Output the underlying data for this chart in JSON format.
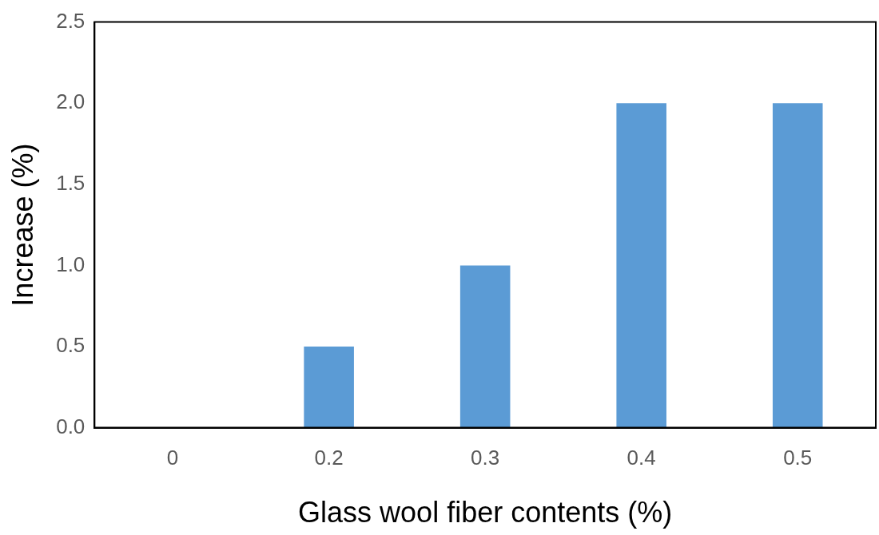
{
  "chart_data": {
    "type": "bar",
    "xlabel": "Glass wool fiber contents (%)",
    "ylabel": "Increase (%)",
    "categories": [
      "0",
      "0.2",
      "0.3",
      "0.4",
      "0.5"
    ],
    "values": [
      0,
      0.5,
      1.0,
      2.0,
      2.0
    ],
    "color": "#5b9bd5",
    "ylim": [
      0,
      2.5
    ],
    "yticks": [
      {
        "value": 0,
        "label": "0.0"
      },
      0.5,
      {
        "value": 1,
        "label": "1.0"
      },
      1.5,
      {
        "value": 2,
        "label": "2.0"
      },
      2.5
    ],
    "grid": false,
    "legend": false
  }
}
